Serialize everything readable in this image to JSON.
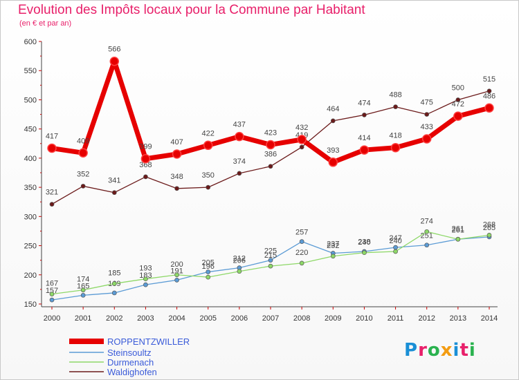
{
  "header": {
    "title": "Evolution des Impôts locaux pour la Commune par Habitant",
    "subtitle": "(en € et par an)"
  },
  "logo": {
    "text": "Proxiti",
    "colors": [
      "#1a8fd6",
      "#e8206a",
      "#2ab24f",
      "#f39c12",
      "#1a8fd6",
      "#e8206a",
      "#2ab24f"
    ]
  },
  "chart_data": {
    "type": "line",
    "x": [
      2000,
      2001,
      2002,
      2003,
      2004,
      2005,
      2006,
      2007,
      2008,
      2009,
      2010,
      2011,
      2012,
      2013,
      2014
    ],
    "ylim": [
      150,
      600
    ],
    "yticks": [
      150,
      200,
      250,
      300,
      350,
      400,
      450,
      500,
      550,
      600
    ],
    "grid": false,
    "legend_position": "bottom-left",
    "series": [
      {
        "name": "ROPPENTZWILLER",
        "color": "#e60000",
        "values": [
          417,
          409,
          566,
          399,
          407,
          422,
          437,
          423,
          432,
          393,
          414,
          418,
          433,
          472,
          486
        ]
      },
      {
        "name": "Steinsoultz",
        "color": "#5b9bd5",
        "values": [
          157,
          165,
          169,
          183,
          191,
          205,
          212,
          225,
          257,
          237,
          240,
          247,
          251,
          261,
          265
        ]
      },
      {
        "name": "Durmenach",
        "color": "#8ed868",
        "values": [
          167,
          174,
          185,
          193,
          200,
          196,
          206,
          215,
          220,
          232,
          238,
          240,
          274,
          261,
          268
        ]
      },
      {
        "name": "Waldighofen",
        "color": "#6b1a1a",
        "values": [
          321,
          352,
          341,
          368,
          348,
          350,
          374,
          386,
          419,
          464,
          474,
          488,
          475,
          500,
          515
        ]
      }
    ]
  }
}
